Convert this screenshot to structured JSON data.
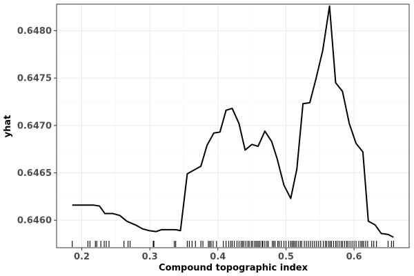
{
  "chart_data": {
    "type": "line",
    "title": "",
    "xlabel": "Compound topographic index",
    "ylabel": "yhat",
    "xlim": [
      0.163,
      0.681
    ],
    "ylim": [
      0.64571,
      0.64828
    ],
    "x_ticks": [
      0.2,
      0.3,
      0.4,
      0.5,
      0.6
    ],
    "x_tick_labels": [
      "0.2",
      "0.3",
      "0.4",
      "0.5",
      "0.6"
    ],
    "y_ticks": [
      0.646,
      0.6465,
      0.647,
      0.6475,
      0.648
    ],
    "y_tick_labels": [
      "0.6460",
      "0.6465",
      "0.6470",
      "0.6475",
      "0.6480"
    ],
    "grid": true,
    "series": [
      {
        "name": "yhat",
        "color": "#000000",
        "x": [
          0.186,
          0.197,
          0.207,
          0.217,
          0.226,
          0.234,
          0.246,
          0.256,
          0.266,
          0.279,
          0.289,
          0.299,
          0.309,
          0.317,
          0.327,
          0.338,
          0.345,
          0.355,
          0.365,
          0.375,
          0.384,
          0.394,
          0.403,
          0.412,
          0.421,
          0.431,
          0.44,
          0.45,
          0.459,
          0.469,
          0.479,
          0.487,
          0.497,
          0.507,
          0.516,
          0.525,
          0.535,
          0.544,
          0.554,
          0.564,
          0.573,
          0.583,
          0.593,
          0.603,
          0.613,
          0.621,
          0.631,
          0.64,
          0.65,
          0.658
        ],
        "y": [
          0.64616,
          0.64616,
          0.64616,
          0.64616,
          0.64615,
          0.64607,
          0.64607,
          0.64605,
          0.64599,
          0.64595,
          0.64591,
          0.64589,
          0.64588,
          0.6459,
          0.6459,
          0.6459,
          0.64589,
          0.64649,
          0.64653,
          0.64657,
          0.64679,
          0.64692,
          0.64693,
          0.64716,
          0.64718,
          0.64702,
          0.64674,
          0.6468,
          0.64678,
          0.64694,
          0.64683,
          0.64665,
          0.64637,
          0.64623,
          0.64654,
          0.64723,
          0.64724,
          0.64749,
          0.64779,
          0.64826,
          0.64745,
          0.64736,
          0.64702,
          0.64681,
          0.64672,
          0.64599,
          0.64595,
          0.64586,
          0.64585,
          0.64582
        ]
      }
    ],
    "rug_x": [
      0.186,
      0.209,
      0.212,
      0.22,
      0.222,
      0.228,
      0.233,
      0.236,
      0.24,
      0.262,
      0.268,
      0.271,
      0.305,
      0.306,
      0.336,
      0.338,
      0.355,
      0.358,
      0.362,
      0.367,
      0.375,
      0.378,
      0.386,
      0.388,
      0.39,
      0.393,
      0.398,
      0.408,
      0.412,
      0.416,
      0.419,
      0.421,
      0.424,
      0.428,
      0.431,
      0.434,
      0.436,
      0.438,
      0.441,
      0.444,
      0.446,
      0.449,
      0.451,
      0.454,
      0.456,
      0.458,
      0.46,
      0.462,
      0.465,
      0.466,
      0.469,
      0.472,
      0.474,
      0.48,
      0.482,
      0.484,
      0.488,
      0.49,
      0.493,
      0.497,
      0.5,
      0.504,
      0.507,
      0.509,
      0.511,
      0.513,
      0.515,
      0.518,
      0.521,
      0.523,
      0.527,
      0.53,
      0.533,
      0.536,
      0.539,
      0.542,
      0.545,
      0.548,
      0.551,
      0.555,
      0.558,
      0.56,
      0.563,
      0.565,
      0.567,
      0.57,
      0.573,
      0.575,
      0.578,
      0.581,
      0.583,
      0.586,
      0.589,
      0.591,
      0.594,
      0.597,
      0.6,
      0.603,
      0.607,
      0.61,
      0.612,
      0.614,
      0.617,
      0.62,
      0.626,
      0.629,
      0.633,
      0.65,
      0.655,
      0.658
    ]
  }
}
